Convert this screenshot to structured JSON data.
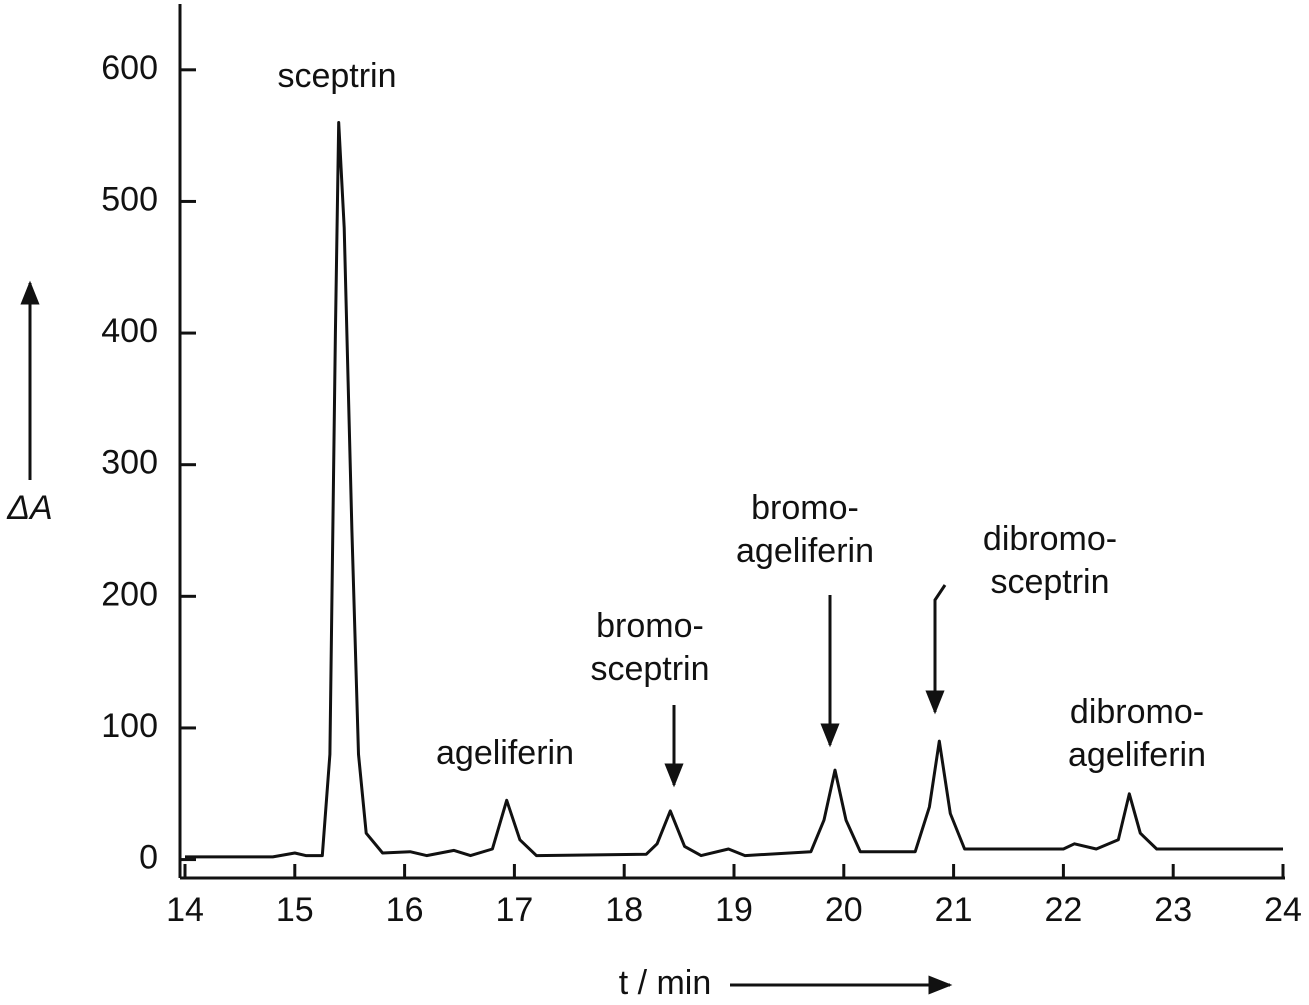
{
  "chart_data": {
    "type": "line",
    "x_label": "t / min",
    "y_label": "ΔA",
    "x": [
      14,
      14.5,
      14.8,
      15.0,
      15.1,
      15.25,
      15.32,
      15.37,
      15.4,
      15.45,
      15.52,
      15.58,
      15.65,
      15.8,
      16.05,
      16.2,
      16.45,
      16.6,
      16.8,
      16.93,
      17.05,
      17.2,
      18.2,
      18.3,
      18.42,
      18.55,
      18.7,
      18.95,
      19.1,
      19.7,
      19.82,
      19.92,
      20.02,
      20.15,
      20.65,
      20.78,
      20.87,
      20.97,
      21.1,
      21.7,
      22.0,
      22.1,
      22.3,
      22.5,
      22.6,
      22.7,
      22.85,
      24
    ],
    "values": [
      2,
      2,
      2,
      5,
      3,
      3,
      80,
      400,
      560,
      480,
      250,
      80,
      20,
      5,
      6,
      3,
      7,
      3,
      8,
      45,
      15,
      3,
      4,
      12,
      37,
      10,
      3,
      8,
      3,
      6,
      30,
      68,
      30,
      6,
      6,
      40,
      90,
      35,
      8,
      8,
      8,
      12,
      8,
      15,
      50,
      20,
      8,
      8
    ],
    "color": "#111111",
    "xlim": [
      14,
      24
    ],
    "ylim": [
      -14,
      650
    ],
    "xticks": [
      14,
      15,
      16,
      17,
      18,
      19,
      20,
      21,
      22,
      23,
      24
    ],
    "yticks": [
      0,
      100,
      200,
      300,
      400,
      500,
      600
    ],
    "annotations": [
      [
        "sceptrin"
      ],
      [
        "ageliferin"
      ],
      [
        "bromo-",
        "sceptrin"
      ],
      [
        "bromo-",
        "ageliferin"
      ],
      [
        "dibromo-",
        "sceptrin"
      ],
      [
        "dibromo-",
        "ageliferin"
      ]
    ]
  }
}
